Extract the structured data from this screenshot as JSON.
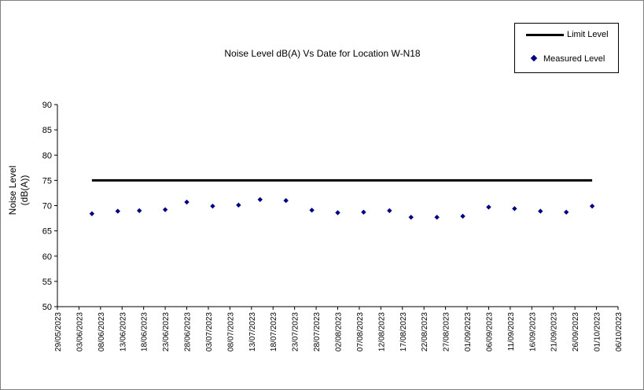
{
  "chart_data": {
    "type": "scatter",
    "title": "Noise Level dB(A) Vs Date for Location W-N18",
    "ylabel_lines": [
      "Noise Level",
      "(dB(A))"
    ],
    "xlabel": "",
    "ylim": [
      50,
      90
    ],
    "yticks": [
      50,
      55,
      60,
      65,
      70,
      75,
      80,
      85,
      90
    ],
    "xlim": [
      "2023-05-29",
      "2023-10-06"
    ],
    "xtick_labels": [
      "29/05/2023",
      "03/06/2023",
      "08/06/2023",
      "13/06/2023",
      "18/06/2023",
      "23/06/2023",
      "28/06/2023",
      "03/07/2023",
      "08/07/2023",
      "13/07/2023",
      "18/07/2023",
      "23/07/2023",
      "28/07/2023",
      "02/08/2023",
      "07/08/2023",
      "12/08/2023",
      "17/08/2023",
      "22/08/2023",
      "27/08/2023",
      "01/09/2023",
      "06/09/2023",
      "11/09/2023",
      "16/09/2023",
      "21/09/2023",
      "26/09/2023",
      "01/10/2023",
      "06/10/2023"
    ],
    "legend_position": "top-right",
    "series": [
      {
        "name": "Limit Level",
        "kind": "line",
        "color": "#000000",
        "x": [
          "2023-06-06",
          "2023-09-30"
        ],
        "y": [
          75,
          75
        ]
      },
      {
        "name": "Measured Level",
        "kind": "scatter",
        "color": "#000080",
        "x": [
          "2023-06-06",
          "2023-06-12",
          "2023-06-17",
          "2023-06-23",
          "2023-06-28",
          "2023-07-04",
          "2023-07-10",
          "2023-07-15",
          "2023-07-21",
          "2023-07-27",
          "2023-08-02",
          "2023-08-08",
          "2023-08-14",
          "2023-08-19",
          "2023-08-25",
          "2023-08-31",
          "2023-09-06",
          "2023-09-12",
          "2023-09-18",
          "2023-09-24",
          "2023-09-30"
        ],
        "y": [
          68.4,
          68.9,
          69.0,
          69.2,
          70.7,
          69.9,
          70.1,
          71.2,
          71.0,
          69.1,
          68.6,
          68.7,
          69.0,
          67.7,
          67.7,
          67.9,
          69.7,
          69.4,
          68.9,
          68.7,
          69.9
        ]
      }
    ]
  }
}
